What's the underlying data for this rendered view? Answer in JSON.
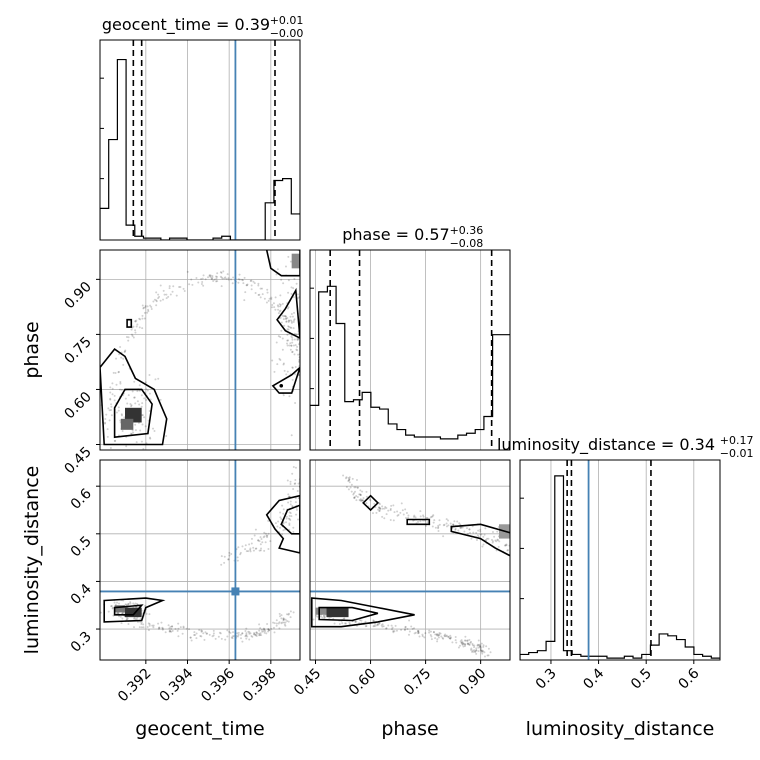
{
  "chart_data": {
    "type": "corner",
    "truth_color": "#4682b4",
    "params": [
      {
        "name": "geocent_time",
        "label": "geocent_time",
        "range": [
          0.3898,
          0.3994
        ],
        "ticks": [
          0.392,
          0.394,
          0.396,
          0.398
        ],
        "tick_labels": [
          "0.392",
          "0.394",
          "0.396",
          "0.398"
        ],
        "truth": 0.3963,
        "quantiles": [
          0.3914,
          0.3918,
          0.3982
        ],
        "title": {
          "prefix": "geocent_time = 0.39",
          "plus": "+0.01",
          "minus": "−0.00"
        }
      },
      {
        "name": "phase",
        "label": "phase",
        "range": [
          0.435,
          0.98
        ],
        "ticks": [
          0.45,
          0.6,
          0.75,
          0.9
        ],
        "tick_labels": [
          "0.45",
          "0.60",
          "0.75",
          "0.90"
        ],
        "truth": null,
        "quantiles": [
          0.49,
          0.57,
          0.93
        ],
        "title": {
          "prefix": "phase = 0.57",
          "plus": "+0.36",
          "minus": "−0.08"
        }
      },
      {
        "name": "luminosity_distance",
        "label": "luminosity_distance",
        "range": [
          0.235,
          0.655
        ],
        "ticks": [
          0.3,
          0.4,
          0.5,
          0.6
        ],
        "tick_labels": [
          "0.3",
          "0.4",
          "0.5",
          "0.6"
        ],
        "truth": 0.379,
        "quantiles": [
          0.334,
          0.343,
          0.51
        ],
        "title": {
          "prefix": "luminosity_distance = 0.34",
          "plus": "+0.17",
          "minus": "−0.01"
        }
      }
    ],
    "hist1d": [
      [
        0.17,
        0.54,
        0.97,
        0.08,
        0.02,
        0.01,
        0.01,
        0.0,
        0.01,
        0.01,
        0.0,
        0.0,
        0.0,
        0.01,
        0.02,
        0.0,
        0.0,
        0.0,
        0.0,
        0.2,
        0.32,
        0.33,
        0.14
      ],
      [
        0.24,
        0.85,
        0.88,
        0.68,
        0.26,
        0.27,
        0.31,
        0.23,
        0.22,
        0.14,
        0.11,
        0.08,
        0.07,
        0.07,
        0.07,
        0.06,
        0.06,
        0.08,
        0.09,
        0.11,
        0.18,
        0.62,
        0.62
      ],
      [
        0.03,
        0.04,
        0.05,
        0.1,
        0.99,
        0.05,
        0.03,
        0.02,
        0.02,
        0.02,
        0.01,
        0.01,
        0.02,
        0.01,
        0.03,
        0.08,
        0.14,
        0.13,
        0.11,
        0.07,
        0.03,
        0.02,
        0.01
      ]
    ],
    "grid": true
  }
}
